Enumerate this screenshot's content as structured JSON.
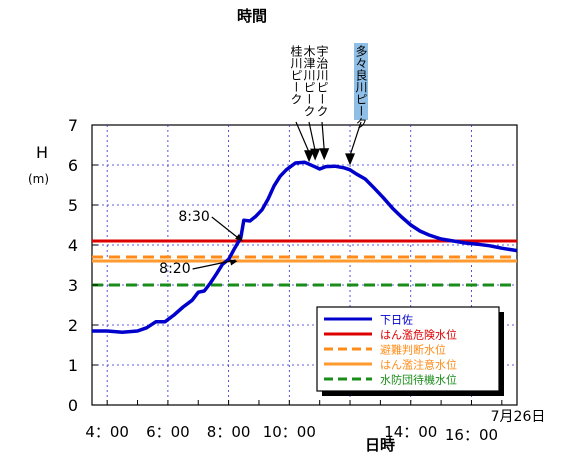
{
  "chart_data": {
    "type": "line",
    "top_label": "時間",
    "ylabel": "H",
    "yunit": "(m)",
    "xlabel": "日時",
    "ylim": [
      0,
      7
    ],
    "yticks": [
      0,
      1,
      2,
      3,
      4,
      5,
      6,
      7
    ],
    "xlim_hours": [
      3.5,
      17.5
    ],
    "xticks": [
      {
        "hour": 4,
        "label": "4：00"
      },
      {
        "hour": 6,
        "label": "6：00"
      },
      {
        "hour": 8,
        "label": "8：00"
      },
      {
        "hour": 10,
        "label": "10：00"
      },
      {
        "hour": 14,
        "label": "14：00"
      },
      {
        "hour": 16,
        "label": "16：00"
      }
    ],
    "date_label": "7月26日",
    "grid": true,
    "series": [
      {
        "name": "下日佐",
        "color": "#0000cc",
        "style": "solid",
        "x_hours": [
          3.5,
          4.0,
          4.5,
          5.0,
          5.3,
          5.6,
          5.9,
          6.2,
          6.5,
          6.8,
          7.0,
          7.2,
          7.4,
          7.6,
          7.8,
          8.0,
          8.2,
          8.4,
          8.5,
          8.7,
          8.9,
          9.1,
          9.3,
          9.5,
          9.7,
          9.9,
          10.2,
          10.5,
          10.8,
          11.0,
          11.2,
          11.5,
          11.8,
          12.0,
          12.2,
          12.5,
          12.8,
          13.1,
          13.4,
          13.7,
          14.0,
          14.3,
          14.6,
          15.0,
          15.4,
          15.8,
          16.2,
          16.6,
          17.0,
          17.5
        ],
        "values": [
          1.85,
          1.85,
          1.82,
          1.85,
          1.93,
          2.08,
          2.08,
          2.25,
          2.45,
          2.62,
          2.82,
          2.85,
          3.05,
          3.28,
          3.52,
          3.64,
          3.92,
          4.18,
          4.62,
          4.6,
          4.72,
          4.88,
          5.15,
          5.48,
          5.72,
          5.88,
          6.05,
          6.07,
          5.97,
          5.9,
          5.96,
          5.97,
          5.93,
          5.88,
          5.78,
          5.65,
          5.42,
          5.18,
          4.92,
          4.7,
          4.5,
          4.35,
          4.25,
          4.15,
          4.1,
          4.05,
          4.02,
          3.98,
          3.92,
          3.86
        ]
      },
      {
        "name": "はん濫危険水位",
        "color": "#dd0000",
        "style": "solid",
        "value": 4.1
      },
      {
        "name": "避難判断水位",
        "color": "#ff8c1a",
        "style": "dashed",
        "value": 3.7
      },
      {
        "name": "はん濫注意水位",
        "color": "#ff9a2e",
        "style": "solid",
        "value": 3.6
      },
      {
        "name": "水防団待機水位",
        "color": "#1a8c1a",
        "style": "dashed",
        "value": 3.0
      }
    ],
    "legend_position": "bottom-right",
    "annotations": [
      {
        "label": "8:30",
        "hour": 8.5,
        "value": 4.1
      },
      {
        "label": "8:20",
        "hour": 8.33,
        "value": 3.6
      }
    ],
    "peak_markers": [
      {
        "label": "桂川ピーク",
        "hour": 10.65,
        "value": 6.02
      },
      {
        "label": "木津川ピーク",
        "hour": 10.85,
        "value": 6.06
      },
      {
        "label": "宇治川ピーク",
        "hour": 11.15,
        "value": 6.07
      },
      {
        "label": "多々良川ピーク",
        "hour": 12.0,
        "value": 5.94,
        "highlight": true
      }
    ]
  }
}
